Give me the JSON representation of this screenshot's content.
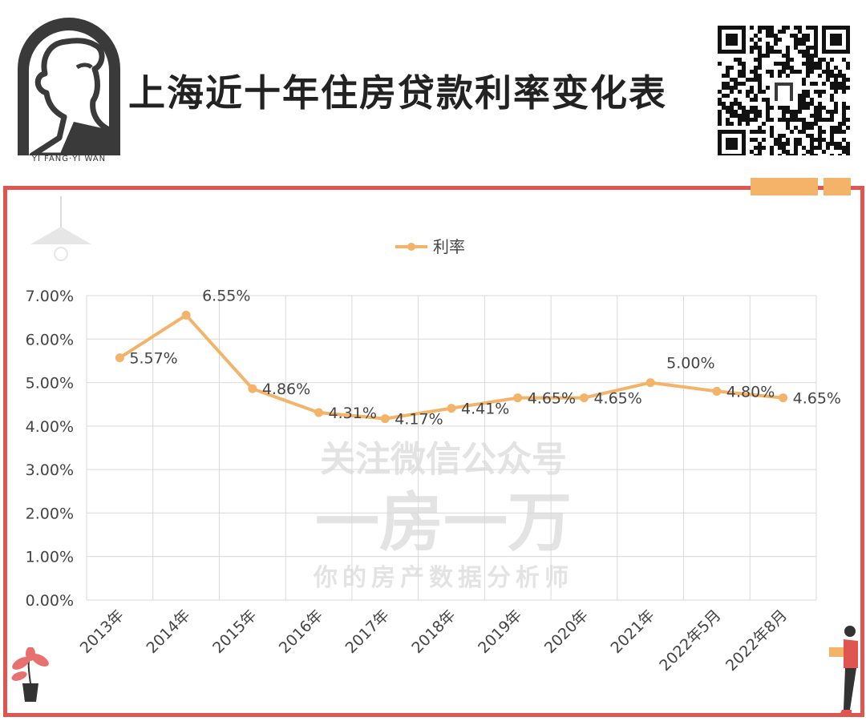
{
  "header": {
    "title": "上海近十年住房贷款利率变化表",
    "logo_caption": "YI FANG·YI WAN"
  },
  "watermark": {
    "line1": "关注微信公众号",
    "line2": "一房一万",
    "line3": "你的房产数据分析师"
  },
  "colors": {
    "series": "#f3b369",
    "frame": "#e05550",
    "grid": "#d9d9d9"
  },
  "icons": [
    "logo-portrait-icon",
    "qr-code-icon",
    "lamp-icon",
    "plant-icon",
    "person-icon"
  ],
  "chart_data": {
    "type": "line",
    "categories": [
      "2013年",
      "2014年",
      "2015年",
      "2016年",
      "2017年",
      "2018年",
      "2019年",
      "2020年",
      "2021年",
      "2022年5月",
      "2022年8月"
    ],
    "series": [
      {
        "name": "利率",
        "values": [
          5.57,
          6.55,
          4.86,
          4.31,
          4.17,
          4.41,
          4.65,
          4.65,
          5.0,
          4.8,
          4.65
        ],
        "labels": [
          "5.57%",
          "6.55%",
          "4.86%",
          "4.31%",
          "4.17%",
          "4.41%",
          "4.65%",
          "4.65%",
          "5.00%",
          "4.80%",
          "4.65%"
        ]
      }
    ],
    "yticks": [
      "0.00%",
      "1.00%",
      "2.00%",
      "3.00%",
      "4.00%",
      "5.00%",
      "6.00%",
      "7.00%"
    ],
    "ylim": [
      0,
      7
    ],
    "grid": true,
    "legend": "top-center"
  }
}
